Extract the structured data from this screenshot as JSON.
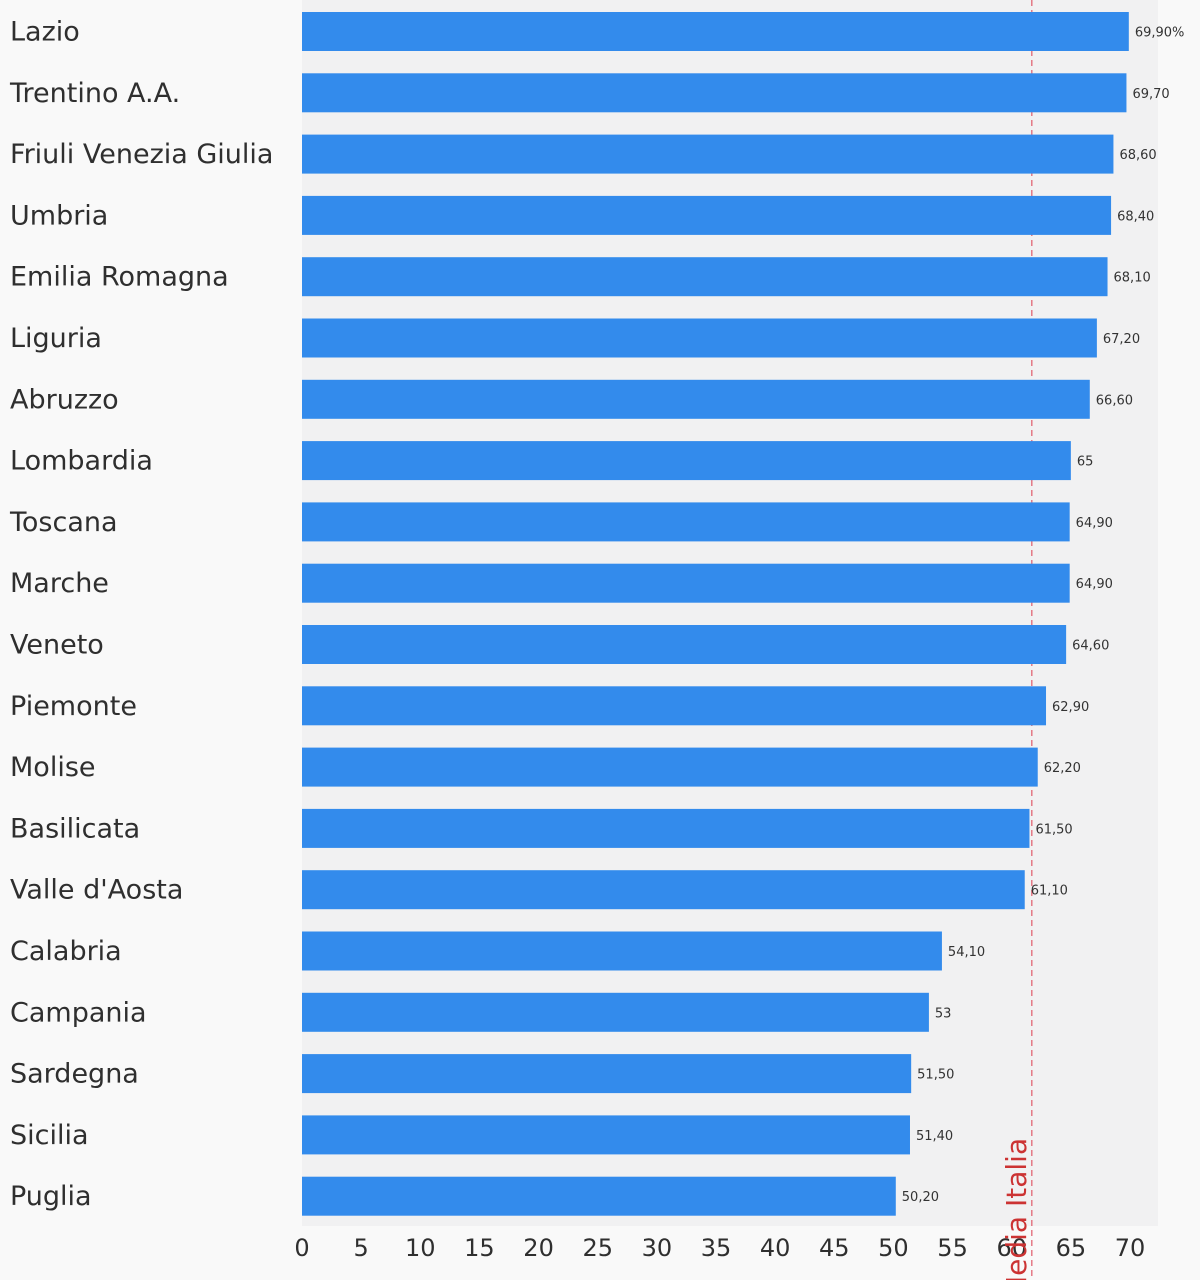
{
  "chart_data": {
    "type": "bar",
    "orientation": "horizontal",
    "categories": [
      "Lazio",
      "Trentino A.A.",
      "Friuli Venezia Giulia",
      "Umbria",
      "Emilia Romagna",
      "Liguria",
      "Abruzzo",
      "Lombardia",
      "Toscana",
      "Marche",
      "Veneto",
      "Piemonte",
      "Molise",
      "Basilicata",
      "Valle d'Aosta",
      "Calabria",
      "Campania",
      "Sardegna",
      "Sicilia",
      "Puglia"
    ],
    "values": [
      69.9,
      69.7,
      68.6,
      68.4,
      68.1,
      67.2,
      66.6,
      65,
      64.9,
      64.9,
      64.6,
      62.9,
      62.2,
      61.5,
      61.1,
      54.1,
      53,
      51.5,
      51.4,
      50.2
    ],
    "value_labels": [
      "69,90%",
      "69,70",
      "68,60",
      "68,40",
      "68,10",
      "67,20",
      "66,60",
      "65",
      "64,90",
      "64,90",
      "64,60",
      "62,90",
      "62,20",
      "61,50",
      "61,10",
      "54,10",
      "53",
      "51,50",
      "51,40",
      "50,20"
    ],
    "xlim": [
      0,
      70
    ],
    "x_ticks": [
      "0",
      "5",
      "10",
      "15",
      "20",
      "25",
      "30",
      "35",
      "40",
      "45",
      "50",
      "55",
      "60",
      "65",
      "70"
    ],
    "reference_line": {
      "label": "Media Italia",
      "value": 61.7,
      "color": "#e05a6a",
      "label_color": "#cc3333"
    },
    "bar_color": "#338bec",
    "plot_background": "#f1f1f2",
    "grid": false,
    "legend": "none",
    "title": "",
    "xlabel": "",
    "ylabel": ""
  }
}
